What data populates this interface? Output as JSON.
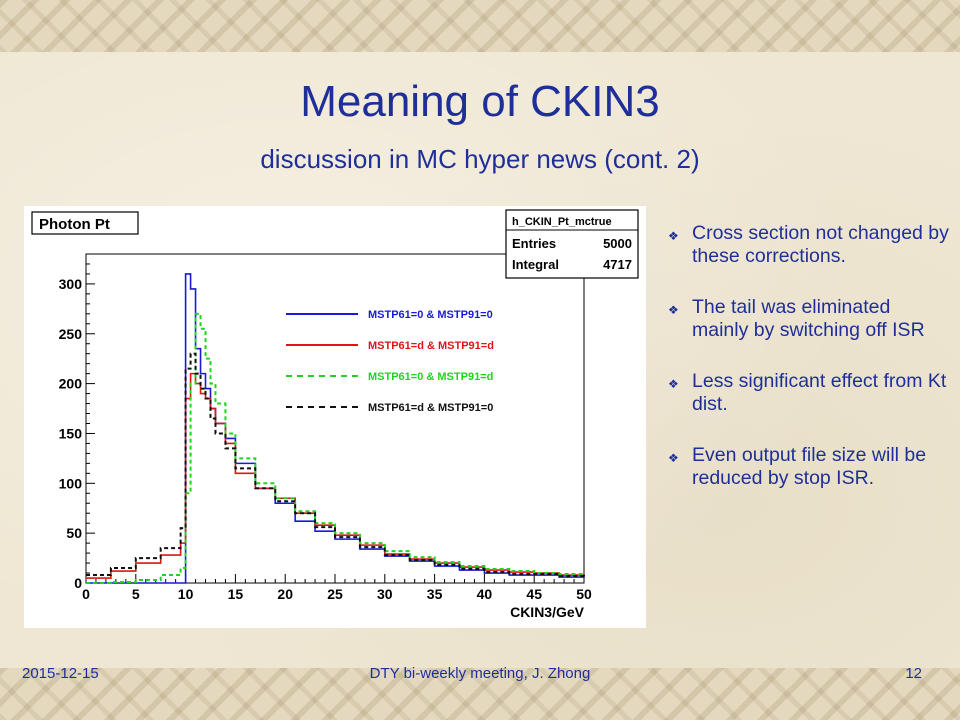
{
  "slide": {
    "title": "Meaning of CKIN3",
    "subtitle": "discussion in MC hyper news (cont. 2)",
    "bullets": [
      "Cross section not changed by these corrections.",
      "The tail was eliminated mainly by switching off ISR",
      "Less significant effect from Kt dist.",
      "Even output file size will be reduced by stop ISR."
    ],
    "footer": {
      "date": "2015-12-15",
      "center": "DTY bi-weekly meeting, J. Zhong",
      "page": "12"
    },
    "colors": {
      "text": "#1f2f9a",
      "background": "#efe7d3"
    },
    "bullet_icon": "diamond-bullet-icon"
  },
  "chart_data": {
    "type": "line",
    "histogram": true,
    "title": "Photon Pt",
    "xlabel": "CKIN3/GeV",
    "ylabel": "",
    "xlim": [
      0,
      50
    ],
    "ylim": [
      0,
      330
    ],
    "xticks": [
      0,
      5,
      10,
      15,
      20,
      25,
      30,
      35,
      40,
      45,
      50
    ],
    "yticks": [
      0,
      50,
      100,
      150,
      200,
      250,
      300
    ],
    "grid": false,
    "stats_box": {
      "name": "h_CKIN_Pt_mctrue",
      "rows": [
        {
          "label": "Entries",
          "value": "5000"
        },
        {
          "label": "Integral",
          "value": "4717"
        }
      ]
    },
    "legend_position": "top-center",
    "x": [
      0,
      2.5,
      5,
      7.5,
      9.5,
      10,
      10.5,
      11,
      11.5,
      12,
      12.5,
      13,
      14,
      15,
      17,
      19,
      21,
      23,
      25,
      27.5,
      30,
      32.5,
      35,
      37.5,
      40,
      42.5,
      45,
      47.5,
      50
    ],
    "series": [
      {
        "name": "MSTP61=0 & MSTP91=0",
        "color": "#1a1ad6",
        "dash": "solid",
        "values": [
          0,
          0,
          0,
          0,
          0,
          310,
          295,
          235,
          210,
          195,
          175,
          160,
          145,
          120,
          95,
          80,
          62,
          52,
          44,
          34,
          27,
          22,
          17,
          13,
          10,
          8,
          8,
          6,
          5
        ]
      },
      {
        "name": "MSTP61=d & MSTP91=d",
        "color": "#e01414",
        "dash": "solid",
        "values": [
          5,
          12,
          20,
          28,
          40,
          185,
          210,
          200,
          190,
          185,
          175,
          160,
          140,
          110,
          95,
          85,
          70,
          58,
          48,
          38,
          29,
          24,
          20,
          16,
          13,
          11,
          10,
          8,
          7
        ]
      },
      {
        "name": "MSTP61=0 & MSTP91=d",
        "color": "#21d321",
        "dash": "dashed",
        "values": [
          0,
          1,
          3,
          8,
          15,
          90,
          200,
          270,
          255,
          225,
          200,
          180,
          150,
          125,
          100,
          85,
          72,
          60,
          50,
          40,
          32,
          26,
          21,
          17,
          14,
          12,
          10,
          9,
          8
        ]
      },
      {
        "name": "MSTP61=d & MSTP91=0",
        "color": "#111111",
        "dash": "dashed",
        "values": [
          8,
          15,
          25,
          35,
          55,
          215,
          230,
          210,
          195,
          185,
          165,
          150,
          135,
          115,
          95,
          82,
          70,
          56,
          46,
          36,
          28,
          23,
          18,
          14,
          11,
          9,
          9,
          7,
          6
        ]
      }
    ]
  }
}
